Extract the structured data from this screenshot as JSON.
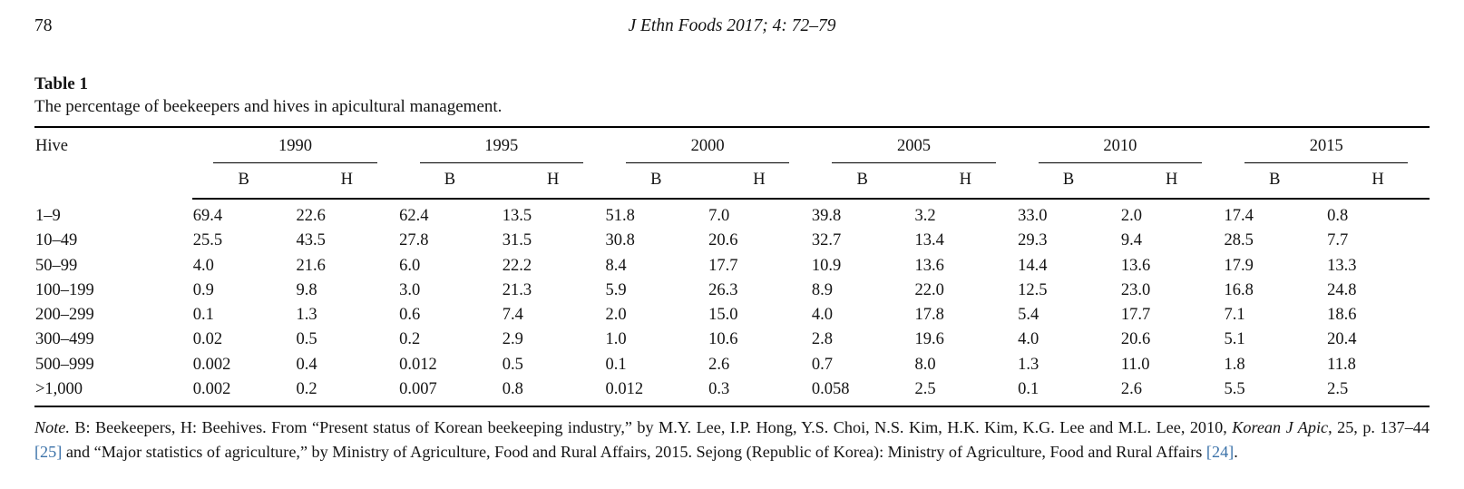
{
  "page": {
    "number": "78",
    "journal_ref": "J Ethn Foods 2017; 4: 72–79"
  },
  "table": {
    "label": "Table 1",
    "caption": "The percentage of beekeepers and hives in apicultural management.",
    "row_header": "Hive",
    "years": [
      "1990",
      "1995",
      "2000",
      "2005",
      "2010",
      "2015"
    ],
    "subheaders": [
      "B",
      "H"
    ],
    "rows": [
      {
        "hive": "1–9",
        "values": [
          "69.4",
          "22.6",
          "62.4",
          "13.5",
          "51.8",
          "7.0",
          "39.8",
          "3.2",
          "33.0",
          "2.0",
          "17.4",
          "0.8"
        ]
      },
      {
        "hive": "10–49",
        "values": [
          "25.5",
          "43.5",
          "27.8",
          "31.5",
          "30.8",
          "20.6",
          "32.7",
          "13.4",
          "29.3",
          "9.4",
          "28.5",
          "7.7"
        ]
      },
      {
        "hive": "50–99",
        "values": [
          "4.0",
          "21.6",
          "6.0",
          "22.2",
          "8.4",
          "17.7",
          "10.9",
          "13.6",
          "14.4",
          "13.6",
          "17.9",
          "13.3"
        ]
      },
      {
        "hive": "100–199",
        "values": [
          "0.9",
          "9.8",
          "3.0",
          "21.3",
          "5.9",
          "26.3",
          "8.9",
          "22.0",
          "12.5",
          "23.0",
          "16.8",
          "24.8"
        ]
      },
      {
        "hive": "200–299",
        "values": [
          "0.1",
          "1.3",
          "0.6",
          "7.4",
          "2.0",
          "15.0",
          "4.0",
          "17.8",
          "5.4",
          "17.7",
          "7.1",
          "18.6"
        ]
      },
      {
        "hive": "300–499",
        "values": [
          "0.02",
          "0.5",
          "0.2",
          "2.9",
          "1.0",
          "10.6",
          "2.8",
          "19.6",
          "4.0",
          "20.6",
          "5.1",
          "20.4"
        ]
      },
      {
        "hive": "500–999",
        "values": [
          "0.002",
          "0.4",
          "0.012",
          "0.5",
          "0.1",
          "2.6",
          "0.7",
          "8.0",
          "1.3",
          "11.0",
          "1.8",
          "11.8"
        ]
      },
      {
        "hive": ">1,000",
        "values": [
          "0.002",
          "0.2",
          "0.007",
          "0.8",
          "0.012",
          "0.3",
          "0.058",
          "2.5",
          "0.1",
          "2.6",
          "5.5",
          "2.5"
        ]
      }
    ]
  },
  "note": {
    "link_color": "#3b72a9",
    "segments": [
      {
        "text": "Note.",
        "style": "italic"
      },
      {
        "text": " B: Beekeepers, H: Beehives. From “Present status of Korean beekeeping industry,” by M.Y. Lee, I.P. Hong, Y.S. Choi, N.S. Kim, H.K. Kim, K.G. Lee and M.L. Lee, 2010, ",
        "style": "normal"
      },
      {
        "text": "Korean J Apic",
        "style": "italic"
      },
      {
        "text": ", 25, p. 137–44 ",
        "style": "normal"
      },
      {
        "text": "[25]",
        "style": "link"
      },
      {
        "text": " and “Major statistics of agriculture,” by Ministry of Agriculture, Food and Rural Affairs, 2015. Sejong (Republic of Korea): Ministry of Agriculture, Food and Rural Affairs ",
        "style": "normal"
      },
      {
        "text": "[24]",
        "style": "link"
      },
      {
        "text": ".",
        "style": "normal"
      }
    ]
  }
}
